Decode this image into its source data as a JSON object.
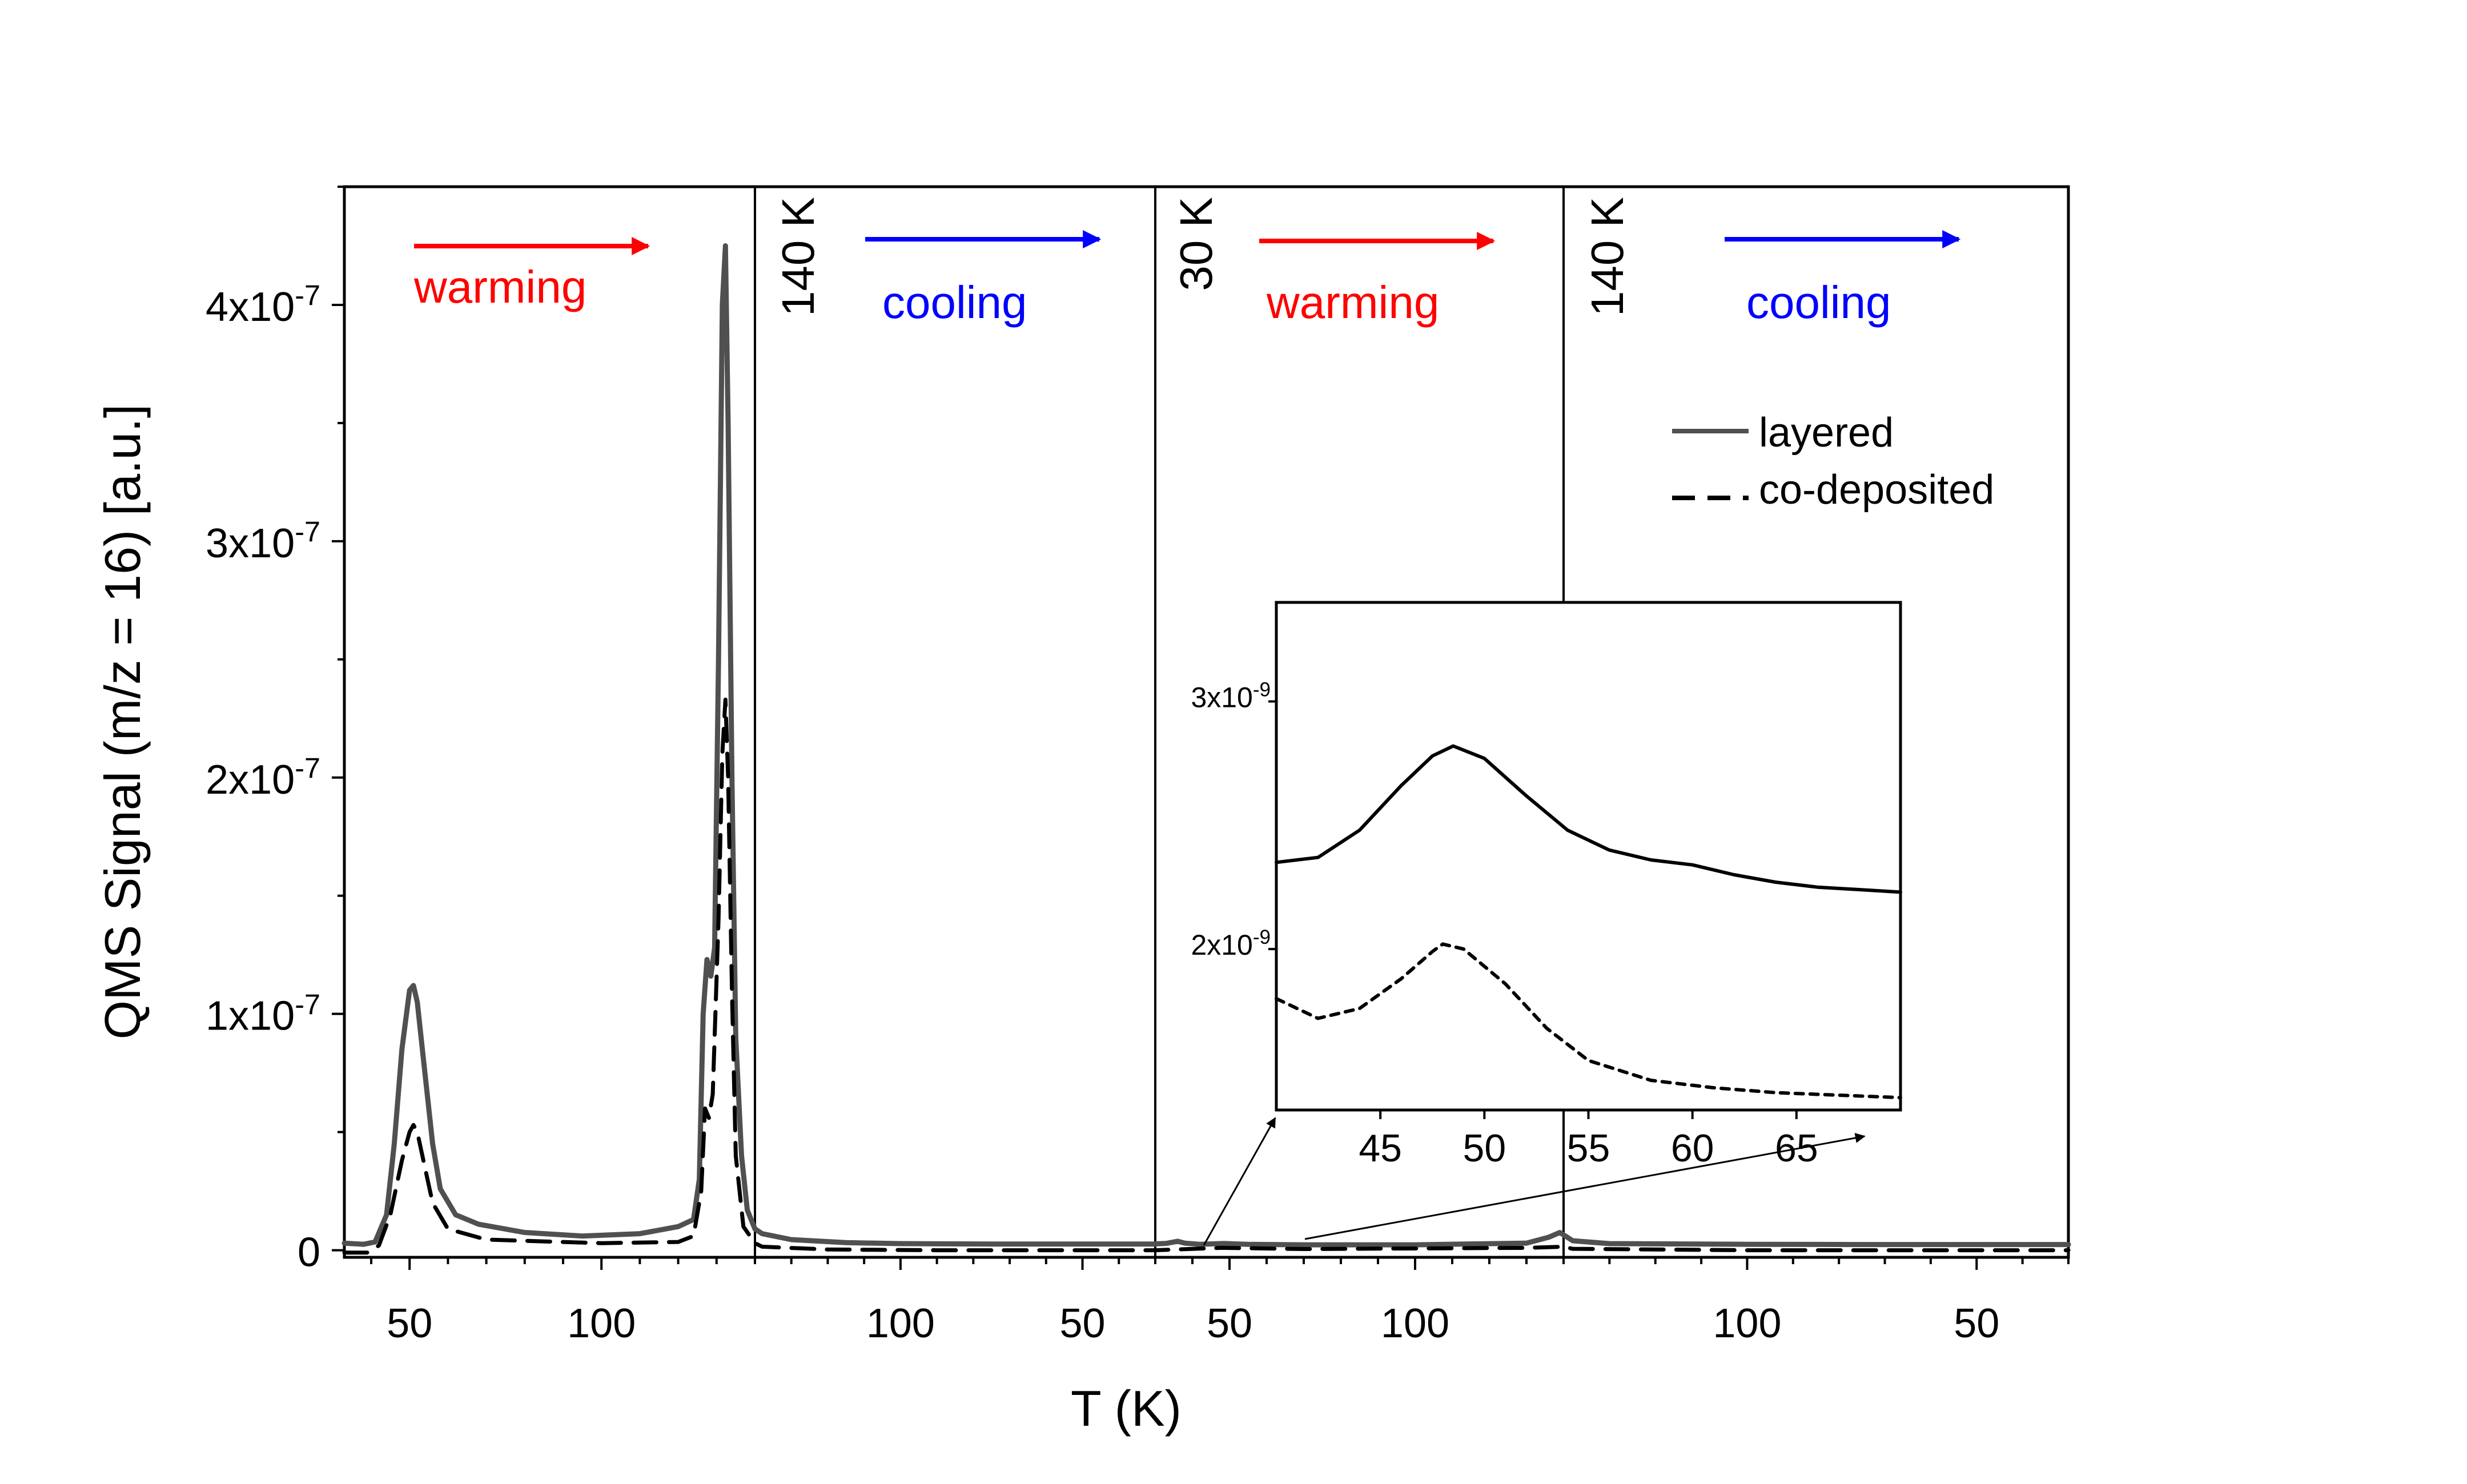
{
  "chart_data": {
    "type": "line",
    "xlabel": "T (K)",
    "ylabel": "QMS Signal (m/z = 16) [a.u.]",
    "ylim": [
      -3e-09,
      4.5e-07
    ],
    "ytick_labels": [
      {
        "value": 0,
        "label": "0"
      },
      {
        "value": 1e-07,
        "label": "1x10",
        "exp": "-7"
      },
      {
        "value": 2e-07,
        "label": "2x10",
        "exp": "-7"
      },
      {
        "value": 3e-07,
        "label": "3x10",
        "exp": "-7"
      },
      {
        "value": 4e-07,
        "label": "4x10",
        "exp": "-7"
      }
    ],
    "segments": [
      {
        "phase": "warming",
        "T_start": 33,
        "T_end": 140,
        "color": "#ff0000",
        "ticks": [
          50,
          100
        ]
      },
      {
        "phase": "cooling",
        "T_start": 140,
        "T_end": 30,
        "color": "#0000ff",
        "ticks": [
          100,
          50
        ]
      },
      {
        "phase": "warming",
        "T_start": 30,
        "T_end": 140,
        "color": "#ff0000",
        "ticks": [
          50,
          100
        ]
      },
      {
        "phase": "cooling",
        "T_start": 140,
        "T_end": 30,
        "color": "#0000ff",
        "ticks": [
          100,
          50
        ]
      }
    ],
    "boundaries": [
      {
        "index": 1,
        "label": "140 K"
      },
      {
        "index": 2,
        "label": "30 K"
      },
      {
        "index": 3,
        "label": "140 K"
      }
    ],
    "series": [
      {
        "name": "layered",
        "style": "solid",
        "color": "#505050",
        "points": [
          [
            0,
            33,
            3e-09
          ],
          [
            0,
            38,
            2.5e-09
          ],
          [
            0,
            41,
            3.5e-09
          ],
          [
            0,
            44,
            1.5e-08
          ],
          [
            0,
            46,
            4.5e-08
          ],
          [
            0,
            48,
            8.5e-08
          ],
          [
            0,
            50,
            1.1e-07
          ],
          [
            0,
            51,
            1.12e-07
          ],
          [
            0,
            52,
            1.05e-07
          ],
          [
            0,
            54,
            7.5e-08
          ],
          [
            0,
            56,
            4.5e-08
          ],
          [
            0,
            58,
            2.6e-08
          ],
          [
            0,
            62,
            1.5e-08
          ],
          [
            0,
            68,
            1.1e-08
          ],
          [
            0,
            80,
            7.5e-09
          ],
          [
            0,
            95,
            6e-09
          ],
          [
            0,
            110,
            7e-09
          ],
          [
            0,
            120,
            1e-08
          ],
          [
            0,
            124,
            1.3e-08
          ],
          [
            0,
            125.5,
            3e-08
          ],
          [
            0,
            126.5,
            1e-07
          ],
          [
            0,
            127.5,
            1.23e-07
          ],
          [
            0,
            128.5,
            1.16e-07
          ],
          [
            0,
            129.5,
            1.28e-07
          ],
          [
            0,
            130.5,
            2.5e-07
          ],
          [
            0,
            131.5,
            4e-07
          ],
          [
            0,
            132.3,
            4.25e-07
          ],
          [
            0,
            133,
            3.5e-07
          ],
          [
            0,
            134,
            2e-07
          ],
          [
            0,
            135,
            9e-08
          ],
          [
            0,
            136.5,
            4e-08
          ],
          [
            0,
            138,
            1.7e-08
          ],
          [
            0,
            140,
            9e-09
          ],
          [
            1,
            138,
            7e-09
          ],
          [
            1,
            130,
            4.5e-09
          ],
          [
            1,
            115,
            3.2e-09
          ],
          [
            1,
            100,
            2.8e-09
          ],
          [
            1,
            75,
            2.6e-09
          ],
          [
            1,
            50,
            2.6e-09
          ],
          [
            1,
            30,
            2.6e-09
          ],
          [
            2,
            30,
            2.7e-09
          ],
          [
            2,
            33,
            2.9e-09
          ],
          [
            2,
            36,
            3.8e-09
          ],
          [
            2,
            38,
            3e-09
          ],
          [
            2,
            42,
            2.5e-09
          ],
          [
            2,
            48.5,
            2.85e-09
          ],
          [
            2,
            55,
            2.5e-09
          ],
          [
            2,
            70,
            2.3e-09
          ],
          [
            2,
            100,
            2.3e-09
          ],
          [
            2,
            130,
            3e-09
          ],
          [
            2,
            136,
            5.5e-09
          ],
          [
            2,
            139,
            7.5e-09
          ],
          [
            2,
            140,
            6.5e-09
          ],
          [
            3,
            138,
            4e-09
          ],
          [
            3,
            130,
            2.8e-09
          ],
          [
            3,
            100,
            2.5e-09
          ],
          [
            3,
            75,
            2.4e-09
          ],
          [
            3,
            50,
            2.4e-09
          ],
          [
            3,
            30,
            2.4e-09
          ]
        ]
      },
      {
        "name": "co-deposited",
        "style": "dashed",
        "color": "#000000",
        "points": [
          [
            0,
            33,
            -1e-09
          ],
          [
            0,
            39,
            -1e-09
          ],
          [
            0,
            42,
            2e-09
          ],
          [
            0,
            45,
            1.5e-08
          ],
          [
            0,
            48,
            3.8e-08
          ],
          [
            0,
            50,
            5e-08
          ],
          [
            0,
            51,
            5.3e-08
          ],
          [
            0,
            52,
            5e-08
          ],
          [
            0,
            54,
            3.5e-08
          ],
          [
            0,
            56,
            2e-08
          ],
          [
            0,
            60,
            9e-09
          ],
          [
            0,
            70,
            4.5e-09
          ],
          [
            0,
            100,
            3e-09
          ],
          [
            0,
            120,
            3.5e-09
          ],
          [
            0,
            124,
            6e-09
          ],
          [
            0,
            126,
            2.5e-08
          ],
          [
            0,
            127,
            6e-08
          ],
          [
            0,
            128,
            5.6e-08
          ],
          [
            0,
            129,
            6.6e-08
          ],
          [
            0,
            130.5,
            1.4e-07
          ],
          [
            0,
            131.5,
            2.1e-07
          ],
          [
            0,
            132.3,
            2.33e-07
          ],
          [
            0,
            133,
            2e-07
          ],
          [
            0,
            134,
            1.1e-07
          ],
          [
            0,
            135,
            4e-08
          ],
          [
            0,
            137,
            1e-08
          ],
          [
            0,
            140,
            3e-09
          ],
          [
            1,
            138,
            1.5e-09
          ],
          [
            1,
            120,
            3e-10
          ],
          [
            1,
            90,
            0
          ],
          [
            1,
            60,
            0
          ],
          [
            1,
            30,
            0
          ],
          [
            2,
            30,
            0
          ],
          [
            2,
            48,
            1e-09
          ],
          [
            2,
            70,
            5e-10
          ],
          [
            2,
            130,
            1e-09
          ],
          [
            2,
            140,
            1.5e-09
          ],
          [
            3,
            138,
            6e-10
          ],
          [
            3,
            100,
            0
          ],
          [
            3,
            30,
            0
          ]
        ]
      }
    ],
    "annotations": {
      "phase_labels": [
        "warming",
        "cooling",
        "warming",
        "cooling"
      ]
    },
    "legend": {
      "location": "right",
      "entries": [
        "layered",
        "co-deposited"
      ]
    },
    "inset": {
      "type": "line",
      "xlim": [
        40,
        70
      ],
      "ylim": [
        1.35e-09,
        3.4e-09
      ],
      "xticks": [
        45,
        50,
        55,
        60,
        65
      ],
      "ytick_labels": [
        {
          "value": 3e-09,
          "label": "3x10",
          "exp": "-9"
        },
        {
          "value": 2e-09,
          "label": "2x10",
          "exp": "-9"
        }
      ],
      "series": [
        {
          "name": "layered",
          "style": "solid",
          "points": [
            [
              40,
              2.35e-09
            ],
            [
              42,
              2.37e-09
            ],
            [
              44,
              2.48e-09
            ],
            [
              46,
              2.66e-09
            ],
            [
              47.5,
              2.78e-09
            ],
            [
              48.5,
              2.82e-09
            ],
            [
              50,
              2.77e-09
            ],
            [
              52,
              2.62e-09
            ],
            [
              54,
              2.48e-09
            ],
            [
              56,
              2.4e-09
            ],
            [
              58,
              2.36e-09
            ],
            [
              60,
              2.34e-09
            ],
            [
              62,
              2.3e-09
            ],
            [
              64,
              2.27e-09
            ],
            [
              66,
              2.25e-09
            ],
            [
              68,
              2.24e-09
            ],
            [
              70,
              2.23e-09
            ]
          ]
        },
        {
          "name": "co-deposited",
          "style": "dotted",
          "points": [
            [
              40,
              1.8e-09
            ],
            [
              42,
              1.72e-09
            ],
            [
              44,
              1.76e-09
            ],
            [
              46,
              1.88e-09
            ],
            [
              47.5,
              1.99e-09
            ],
            [
              48,
              2.02e-09
            ],
            [
              49,
              2e-09
            ],
            [
              51,
              1.86e-09
            ],
            [
              53,
              1.68e-09
            ],
            [
              55,
              1.55e-09
            ],
            [
              58,
              1.47e-09
            ],
            [
              61,
              1.44e-09
            ],
            [
              64,
              1.42e-09
            ],
            [
              67,
              1.41e-09
            ],
            [
              70,
              1.4e-09
            ]
          ]
        }
      ]
    }
  }
}
